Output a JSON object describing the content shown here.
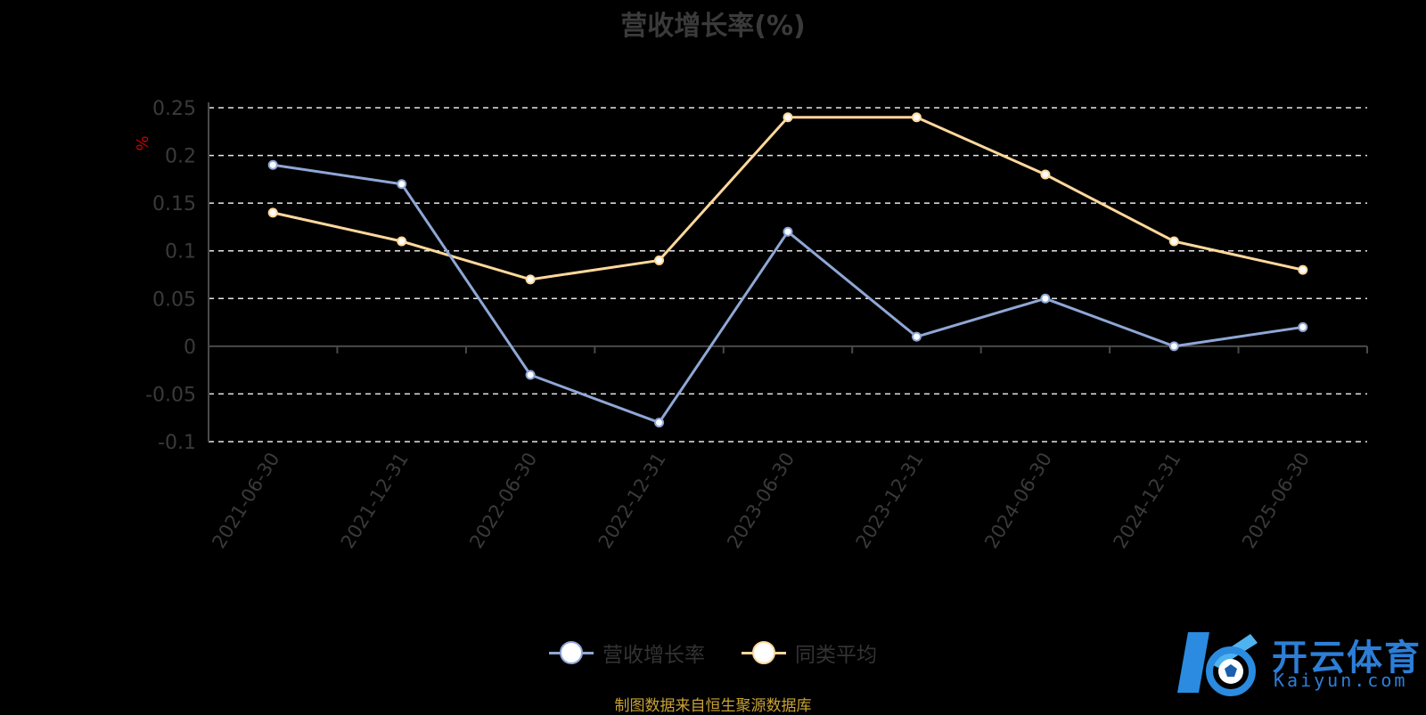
{
  "title": "营收增长率(%)",
  "chart_data": {
    "type": "line",
    "title": "营收增长率(%)",
    "ylabel": "%",
    "categories": [
      "2021-06-30",
      "2021-12-31",
      "2022-06-30",
      "2022-12-31",
      "2023-06-30",
      "2023-12-31",
      "2024-06-30",
      "2024-12-31",
      "2025-06-30"
    ],
    "y_ticks": [
      "0.25",
      "0.2",
      "0.15",
      "0.1",
      "0.05",
      "0",
      "-0.05",
      "-0.1"
    ],
    "ylim": [
      -0.1,
      0.25
    ],
    "grid": true,
    "legend_position": "bottom",
    "series": [
      {
        "name": "营收增长率",
        "color": "#8fa7d6",
        "values": [
          0.19,
          0.17,
          -0.03,
          -0.08,
          0.12,
          0.01,
          0.05,
          0.0,
          0.02
        ]
      },
      {
        "name": "同类平均",
        "color": "#ffd89b",
        "values": [
          0.14,
          0.11,
          0.07,
          0.09,
          0.24,
          0.24,
          0.18,
          0.11,
          0.08
        ]
      }
    ]
  },
  "source": "制图数据来自恒生聚源数据库",
  "brand": {
    "cn": "开云体育",
    "en": "Kaiyun.com"
  }
}
